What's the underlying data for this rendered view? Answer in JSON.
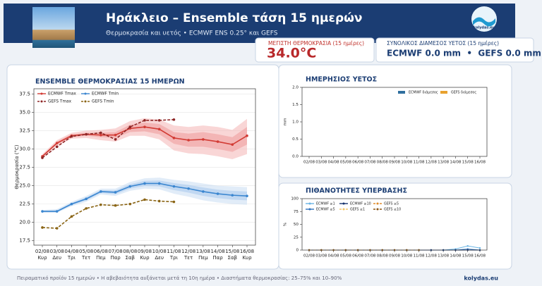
{
  "header": {
    "title": "Ηράκλειο – Ensemble τάση 15 ημερών",
    "subtitle": "Θερμοκρασία και υετός • ECMWF ENS 0.25° και GEFS",
    "logo": "kolydas.eu"
  },
  "stats": [
    {
      "label": "ΜΕΓΙΣΤΗ ΘΕΡΜΟΚΡΑΣΙΑ (15 ημέρες)",
      "value": "34.0°C"
    },
    {
      "label": "ΣΥΝΟΛΙΚΟΣ ΔΙΑΜΕΣΟΣ ΥΕΤΟΣ (15 ημέρες)",
      "value": "ECMWF 0.0 mm  •  GEFS 0.0 mm"
    }
  ],
  "chart_data": [
    {
      "type": "line",
      "title": "ENSEMBLE ΘΕΡΜΟΚΡΑΣΙΑΣ 15 ΗΜΕΡΩΝ",
      "y_label": "Θερμοκρασία (°C)",
      "categories": [
        "02/08",
        "03/08",
        "04/08",
        "05/08",
        "06/08",
        "07/08",
        "08/08",
        "09/08",
        "10/08",
        "11/08",
        "12/08",
        "13/08",
        "14/08",
        "15/08",
        "16/08"
      ],
      "weekdays": [
        "Κυρ",
        "Δευ",
        "Τρι",
        "Τετ",
        "Πεμ",
        "Παρ",
        "Σαβ",
        "Κυρ",
        "Δευ",
        "Τρι",
        "Τετ",
        "Πεμ",
        "Παρ",
        "Σαβ",
        "Κυρ"
      ],
      "ylim": [
        16.9,
        38.2
      ],
      "yticks": [
        17.5,
        {
          "value": 20,
          "label": "20.0"
        },
        22.5,
        {
          "value": 25,
          "label": "25.0"
        },
        27.5,
        {
          "value": 30,
          "label": "30.0"
        },
        32.5,
        {
          "value": 35,
          "label": "35.0"
        },
        37.5
      ],
      "grid": true,
      "legend": "upper left",
      "bands": [
        {
          "color": "#f4b4b4",
          "lower": [
            28.7,
            30.4,
            31.4,
            31.5,
            31.2,
            31.0,
            31.8,
            31.8,
            31.3,
            29.8,
            29.4,
            29.3,
            29.0,
            28.6,
            29.3
          ],
          "upper": [
            29.3,
            31.2,
            32.2,
            32.5,
            32.6,
            32.8,
            33.8,
            34.2,
            34.0,
            33.2,
            33.0,
            33.2,
            33.0,
            32.6,
            34.1
          ]
        },
        {
          "color": "#ee9a9a",
          "lower": [
            28.9,
            30.6,
            31.6,
            31.8,
            31.6,
            31.5,
            32.3,
            32.4,
            32.0,
            30.7,
            30.3,
            30.3,
            30.0,
            29.6,
            30.6
          ],
          "upper": [
            29.1,
            31.0,
            32.0,
            32.2,
            32.2,
            32.3,
            33.3,
            33.6,
            33.4,
            32.3,
            32.1,
            32.3,
            32.0,
            31.6,
            33.0
          ]
        },
        {
          "color": "#c8dcf2",
          "lower": [
            21.3,
            21.3,
            22.2,
            22.8,
            23.8,
            23.6,
            24.3,
            24.6,
            24.5,
            23.9,
            23.5,
            23.0,
            22.7,
            22.5,
            22.4
          ],
          "upper": [
            21.7,
            21.8,
            22.8,
            23.6,
            24.6,
            24.6,
            25.5,
            26.0,
            26.1,
            25.8,
            25.6,
            25.3,
            25.0,
            24.9,
            24.8
          ]
        },
        {
          "color": "#a8c8ec",
          "lower": [
            21.4,
            21.4,
            22.35,
            23.0,
            24.0,
            23.85,
            24.6,
            24.95,
            24.9,
            24.4,
            24.05,
            23.6,
            23.3,
            23.1,
            23.0
          ],
          "upper": [
            21.6,
            21.65,
            22.65,
            23.4,
            24.4,
            24.35,
            25.2,
            25.65,
            25.7,
            25.35,
            25.1,
            24.75,
            24.45,
            24.3,
            24.2
          ]
        }
      ],
      "series": [
        {
          "name": "ECMWF Tmax",
          "color": "#d23b34",
          "dashed": false,
          "values": [
            29.0,
            30.8,
            31.8,
            32.0,
            31.9,
            31.9,
            32.8,
            33.0,
            32.7,
            31.5,
            31.2,
            31.3,
            31.0,
            30.6,
            31.8
          ]
        },
        {
          "name": "GEFS Tmax",
          "color": "#8e2626",
          "dashed": true,
          "values": [
            28.8,
            30.3,
            31.7,
            32.0,
            32.2,
            31.3,
            33.0,
            33.9,
            33.9,
            34.0,
            null,
            null,
            null,
            null,
            null
          ]
        },
        {
          "name": "ECMWF Tmin",
          "color": "#3a86d0",
          "dashed": false,
          "values": [
            21.5,
            21.5,
            22.5,
            23.2,
            24.2,
            24.1,
            24.9,
            25.3,
            25.3,
            24.9,
            24.6,
            24.2,
            23.9,
            23.7,
            23.6
          ]
        },
        {
          "name": "GEFS Tmin",
          "color": "#8a6414",
          "dashed": true,
          "values": [
            19.3,
            19.2,
            20.8,
            21.9,
            22.4,
            22.3,
            22.5,
            23.1,
            22.9,
            22.8,
            null,
            null,
            null,
            null,
            null
          ]
        }
      ]
    },
    {
      "type": "bar",
      "title": "ΗΜΕΡΗΣΙΟΣ ΥΕΤΟΣ",
      "y_label": "mm",
      "categories": [
        "02/08",
        "03/08",
        "04/08",
        "05/08",
        "06/08",
        "07/08",
        "08/08",
        "09/08",
        "10/08",
        "11/08",
        "12/08",
        "13/08",
        "14/08",
        "15/08",
        "16/08"
      ],
      "ylim": [
        0,
        2
      ],
      "yticks": [
        {
          "value": 0,
          "label": "0.0"
        },
        {
          "value": 0.5,
          "label": "0.5"
        },
        {
          "value": 1,
          "label": "1.0"
        },
        {
          "value": 1.5,
          "label": "1.5"
        },
        {
          "value": 2,
          "label": "2.0"
        }
      ],
      "grid": false,
      "legend": "upper right",
      "series": [
        {
          "name": "ECMWF διάμεσος",
          "color": "#2f6f9f",
          "values": [
            0,
            0,
            0,
            0,
            0,
            0,
            0,
            0,
            0,
            0,
            0,
            0,
            0,
            0,
            0
          ]
        },
        {
          "name": "GEFS διάμεσος",
          "color": "#e8a22e",
          "values": [
            0,
            0,
            0,
            0,
            0,
            0,
            0,
            0,
            0,
            0,
            null,
            null,
            null,
            null,
            null
          ]
        }
      ]
    },
    {
      "type": "line",
      "title": "ΠΙΘΑΝΟΤΗΤΕΣ ΥΠΕΡΒΑΣΗΣ",
      "y_label": "%",
      "categories": [
        "02/08",
        "03/08",
        "04/08",
        "05/08",
        "06/08",
        "07/08",
        "08/08",
        "09/08",
        "10/08",
        "11/08",
        "12/08",
        "13/08",
        "14/08",
        "15/08",
        "16/08"
      ],
      "ylim": [
        0,
        100
      ],
      "yticks": [
        0,
        25,
        50,
        75,
        100
      ],
      "grid": false,
      "legend": "upper left",
      "series": [
        {
          "name": "ECMWF ≥1",
          "color": "#6ab4e4",
          "dashed": false,
          "values": [
            0,
            0,
            0,
            0,
            0,
            0,
            0,
            0,
            0,
            0,
            0,
            0,
            2,
            8,
            4
          ]
        },
        {
          "name": "ECMWF ≥5",
          "color": "#2f72bd",
          "dashed": false,
          "values": [
            0,
            0,
            0,
            0,
            0,
            0,
            0,
            0,
            0,
            0,
            0,
            0,
            0,
            2,
            0
          ]
        },
        {
          "name": "ECMWF ≥10",
          "color": "#17336e",
          "dashed": false,
          "values": [
            0,
            0,
            0,
            0,
            0,
            0,
            0,
            0,
            0,
            0,
            0,
            0,
            0,
            0,
            0
          ]
        },
        {
          "name": "GEFS ≥1",
          "color": "#f3c66a",
          "dashed": true,
          "values": [
            0,
            0,
            0,
            0,
            0,
            0,
            0,
            0,
            0,
            0,
            null,
            null,
            null,
            null,
            null
          ]
        },
        {
          "name": "GEFS ≥5",
          "color": "#e08c2a",
          "dashed": true,
          "values": [
            0,
            0,
            0,
            0,
            0,
            0,
            0,
            0,
            0,
            0,
            null,
            null,
            null,
            null,
            null
          ]
        },
        {
          "name": "GEFS ≥10",
          "color": "#8a5514",
          "dashed": true,
          "values": [
            0,
            0,
            0,
            0,
            0,
            0,
            0,
            0,
            0,
            0,
            null,
            null,
            null,
            null,
            null
          ]
        }
      ]
    }
  ],
  "footer": {
    "note": "Πειραματικό προϊόν 15 ημερών • Η αβεβαιότητα αυξάνεται μετά τη 10η ημέρα • Διαστήματα θερμοκρασίας: 25–75% και 10–90%",
    "brand": "kolydas.eu"
  }
}
